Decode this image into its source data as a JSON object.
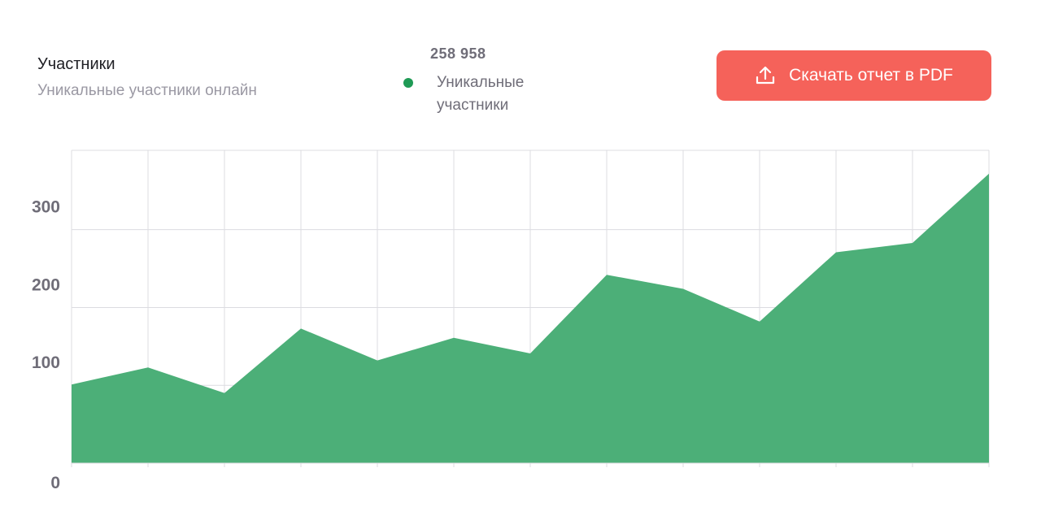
{
  "header": {
    "title": "Участники",
    "subtitle": "Уникальные участники онлайн"
  },
  "summary": {
    "total": "258 958",
    "legend_label": "Уникальные участники",
    "legend_color": "#1f9a55"
  },
  "download_button": {
    "label": "Скачать отчет в PDF",
    "icon": "upload-icon",
    "color": "#f5625a"
  },
  "chart_data": {
    "type": "area",
    "x": [
      0,
      1,
      2,
      3,
      4,
      5,
      6,
      7,
      8,
      9,
      10,
      11,
      12
    ],
    "series": [
      {
        "name": "Уникальные участники",
        "color": "#4caf78",
        "values": [
          101,
          123,
          90,
          173,
          132,
          161,
          141,
          242,
          224,
          182,
          271,
          283,
          372
        ]
      }
    ],
    "ylim": [
      0,
      402
    ],
    "yticks": [
      0,
      100,
      200,
      300
    ],
    "ytick_labels": [
      "0",
      "100",
      "200",
      "300"
    ],
    "grid": true,
    "xlabel": "",
    "ylabel": ""
  }
}
